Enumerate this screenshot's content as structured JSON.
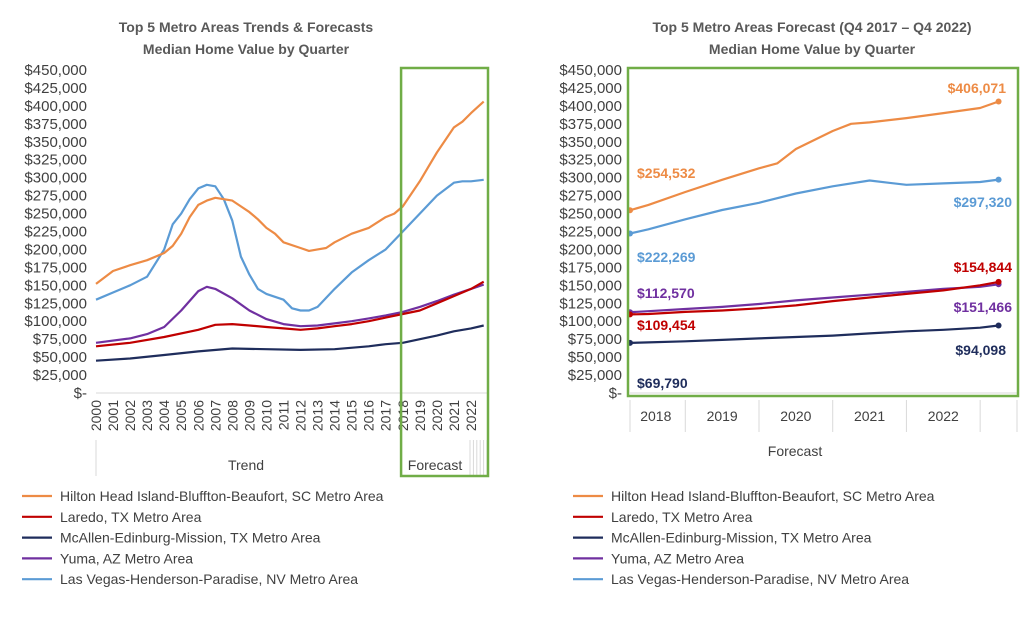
{
  "colors": {
    "hilton": "#ED8B45",
    "laredo": "#C00000",
    "mcallen": "#1F2D5C",
    "yuma": "#7030A0",
    "vegas": "#5B9BD5",
    "frame": "#70AD47"
  },
  "chart_data": [
    {
      "type": "line",
      "title": "Top 5 Metro Areas Trends & Forecasts",
      "subtitle": "Median Home Value by Quarter",
      "x_ticks": [
        "2000",
        "2001",
        "2002",
        "2003",
        "2004",
        "2005",
        "2006",
        "2007",
        "2008",
        "2009",
        "2010",
        "2011",
        "2012",
        "2013",
        "2014",
        "2015",
        "2016",
        "2017",
        "2018",
        "2019",
        "2020",
        "2021",
        "2022"
      ],
      "y_ticks": [
        "$450,000",
        "$425,000",
        "$400,000",
        "$375,000",
        "$350,000",
        "$325,000",
        "$300,000",
        "$275,000",
        "$250,000",
        "$225,000",
        "$200,000",
        "$175,000",
        "$150,000",
        "$125,000",
        "$100,000",
        "$75,000",
        "$50,000",
        "$25,000",
        "$-"
      ],
      "ylim": [
        0,
        450000
      ],
      "xlim": [
        2000,
        2023
      ],
      "section_labels": [
        "Trend",
        "Forecast"
      ],
      "forecast_start": 2017.9,
      "series": [
        {
          "key": "hilton",
          "name": "Hilton Head Island-Bluffton-Beaufort, SC Metro Area",
          "x": [
            2000,
            2001,
            2002,
            2003,
            2004,
            2004.5,
            2005,
            2005.5,
            2006,
            2006.5,
            2007,
            2007.5,
            2008,
            2008.5,
            2009,
            2009.5,
            2010,
            2010.5,
            2011,
            2012,
            2012.5,
            2013,
            2013.5,
            2014,
            2015,
            2016,
            2017,
            2017.5,
            2018,
            2019,
            2019.5,
            2020,
            2021,
            2021.5,
            2022,
            2022.75
          ],
          "y": [
            152000,
            170000,
            178000,
            185000,
            195000,
            205000,
            222000,
            245000,
            262000,
            268000,
            272000,
            270000,
            268000,
            260000,
            252000,
            242000,
            230000,
            222000,
            210000,
            202000,
            198000,
            200000,
            202000,
            210000,
            222000,
            230000,
            245000,
            250000,
            260000,
            295000,
            315000,
            335000,
            370000,
            378000,
            390000,
            406000
          ]
        },
        {
          "key": "laredo",
          "name": "Laredo, TX Metro Area",
          "x": [
            2000,
            2002,
            2004,
            2006,
            2007,
            2008,
            2009,
            2010,
            2011,
            2012,
            2013,
            2014,
            2015,
            2016,
            2017,
            2018,
            2019,
            2020,
            2021,
            2022,
            2022.75
          ],
          "y": [
            65000,
            70000,
            78000,
            88000,
            95000,
            96000,
            94000,
            92000,
            90000,
            88000,
            90000,
            93000,
            96000,
            100000,
            105000,
            110000,
            115000,
            125000,
            135000,
            145000,
            155000
          ]
        },
        {
          "key": "mcallen",
          "name": "McAllen-Edinburg-Mission, TX Metro Area",
          "x": [
            2000,
            2002,
            2004,
            2006,
            2008,
            2010,
            2012,
            2014,
            2016,
            2017,
            2018,
            2019,
            2020,
            2021,
            2022,
            2022.75
          ],
          "y": [
            45000,
            48000,
            53000,
            58000,
            62000,
            61000,
            60000,
            61000,
            65000,
            68000,
            70000,
            75000,
            80000,
            86000,
            90000,
            94000
          ]
        },
        {
          "key": "yuma",
          "name": "Yuma, AZ Metro Area",
          "x": [
            2000,
            2002,
            2003,
            2004,
            2005,
            2006,
            2006.5,
            2007,
            2008,
            2009,
            2010,
            2011,
            2012,
            2013,
            2014,
            2015,
            2016,
            2017,
            2018,
            2019,
            2020,
            2021,
            2022,
            2022.75
          ],
          "y": [
            70000,
            76000,
            82000,
            92000,
            115000,
            142000,
            148000,
            145000,
            132000,
            115000,
            103000,
            96000,
            93000,
            94000,
            97000,
            100000,
            104000,
            108000,
            113000,
            120000,
            128000,
            137000,
            145000,
            151000
          ]
        },
        {
          "key": "vegas",
          "name": "Las Vegas-Henderson-Paradise, NV Metro Area",
          "x": [
            2000,
            2001,
            2002,
            2003,
            2004,
            2004.5,
            2005,
            2005.5,
            2006,
            2006.5,
            2007,
            2007.5,
            2008,
            2008.5,
            2009,
            2009.5,
            2010,
            2011,
            2011.5,
            2012,
            2012.5,
            2013,
            2014,
            2015,
            2016,
            2017,
            2018,
            2019,
            2020,
            2021,
            2021.5,
            2022,
            2022.75
          ],
          "y": [
            130000,
            140000,
            150000,
            162000,
            200000,
            235000,
            250000,
            270000,
            285000,
            290000,
            288000,
            270000,
            240000,
            190000,
            165000,
            145000,
            138000,
            130000,
            118000,
            115000,
            115000,
            120000,
            145000,
            168000,
            185000,
            200000,
            225000,
            250000,
            275000,
            293000,
            295000,
            295000,
            297000
          ]
        }
      ]
    },
    {
      "type": "line",
      "title": "Top 5 Metro Areas Forecast (Q4 2017 – Q4 2022)",
      "subtitle": "Median Home Value by Quarter",
      "x_ticks": [
        "2018",
        "2019",
        "2020",
        "2021",
        "2022"
      ],
      "y_ticks": [
        "$450,000",
        "$425,000",
        "$400,000",
        "$375,000",
        "$350,000",
        "$325,000",
        "$300,000",
        "$275,000",
        "$250,000",
        "$225,000",
        "$200,000",
        "$175,000",
        "$150,000",
        "$125,000",
        "$100,000",
        "$75,000",
        "$50,000",
        "$25,000",
        "$-"
      ],
      "ylim": [
        0,
        450000
      ],
      "xlim": [
        2017.75,
        2023
      ],
      "xlabel": "Forecast",
      "series": [
        {
          "key": "hilton",
          "name": "Hilton Head Island-Bluffton-Beaufort, SC Metro Area",
          "x": [
            2017.75,
            2018,
            2018.5,
            2019,
            2019.5,
            2019.75,
            2020,
            2020.5,
            2020.75,
            2021,
            2021.5,
            2022,
            2022.5,
            2022.75
          ],
          "y": [
            254532,
            262000,
            280000,
            297000,
            313000,
            320000,
            340000,
            365000,
            375000,
            377000,
            383000,
            390000,
            397000,
            406071
          ],
          "labels": [
            [
              "start",
              "$254,532"
            ],
            [
              "end",
              "$406,071"
            ]
          ]
        },
        {
          "key": "laredo",
          "name": "Laredo, TX Metro Area",
          "x": [
            2017.75,
            2018,
            2018.5,
            2019,
            2019.5,
            2020,
            2020.5,
            2021,
            2021.5,
            2022,
            2022.5,
            2022.75
          ],
          "y": [
            109454,
            110000,
            113000,
            115000,
            118000,
            122000,
            128000,
            133000,
            138000,
            143000,
            150000,
            154844
          ],
          "labels": [
            [
              "start",
              "$109,454"
            ],
            [
              "end",
              "$154,844"
            ]
          ]
        },
        {
          "key": "mcallen",
          "name": "McAllen-Edinburg-Mission, TX Metro Area",
          "x": [
            2017.75,
            2018,
            2018.5,
            2019,
            2019.5,
            2020,
            2020.5,
            2021,
            2021.5,
            2022,
            2022.5,
            2022.75
          ],
          "y": [
            69790,
            70500,
            72000,
            74000,
            76000,
            78000,
            80000,
            83000,
            86000,
            88000,
            91000,
            94098
          ],
          "labels": [
            [
              "start",
              "$69,790"
            ],
            [
              "end",
              "$94,098"
            ]
          ]
        },
        {
          "key": "yuma",
          "name": "Yuma, AZ Metro Area",
          "x": [
            2017.75,
            2018,
            2018.5,
            2019,
            2019.5,
            2020,
            2020.5,
            2021,
            2021.5,
            2022,
            2022.5,
            2022.75
          ],
          "y": [
            112570,
            114000,
            117000,
            120000,
            124000,
            129000,
            133000,
            137000,
            141000,
            145000,
            148000,
            151466
          ],
          "labels": [
            [
              "start",
              "$112,570"
            ],
            [
              "end",
              "$151,466"
            ]
          ]
        },
        {
          "key": "vegas",
          "name": "Las Vegas-Henderson-Paradise, NV Metro Area",
          "x": [
            2017.75,
            2018,
            2018.5,
            2019,
            2019.5,
            2020,
            2020.5,
            2021,
            2021.25,
            2021.5,
            2022,
            2022.5,
            2022.75
          ],
          "y": [
            222269,
            228000,
            242000,
            255000,
            265000,
            278000,
            288000,
            296000,
            293000,
            290000,
            292000,
            294000,
            297320
          ],
          "labels": [
            [
              "start",
              "$222,269"
            ],
            [
              "end",
              "$297,320"
            ]
          ]
        }
      ]
    }
  ]
}
